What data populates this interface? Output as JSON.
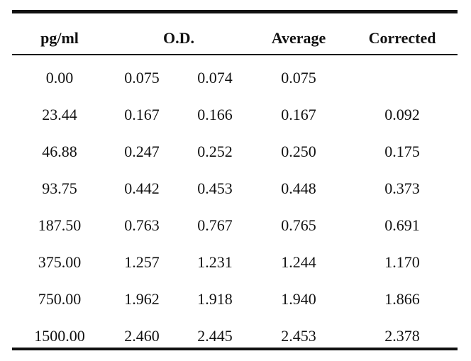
{
  "table": {
    "headers": {
      "pg_ml": "pg/ml",
      "od": "O.D.",
      "average": "Average",
      "corrected": "Corrected"
    },
    "rows": [
      {
        "pg_ml": "0.00",
        "od1": "0.075",
        "od2": "0.074",
        "average": "0.075",
        "corrected": ""
      },
      {
        "pg_ml": "23.44",
        "od1": "0.167",
        "od2": "0.166",
        "average": "0.167",
        "corrected": "0.092"
      },
      {
        "pg_ml": "46.88",
        "od1": "0.247",
        "od2": "0.252",
        "average": "0.250",
        "corrected": "0.175"
      },
      {
        "pg_ml": "93.75",
        "od1": "0.442",
        "od2": "0.453",
        "average": "0.448",
        "corrected": "0.373"
      },
      {
        "pg_ml": "187.50",
        "od1": "0.763",
        "od2": "0.767",
        "average": "0.765",
        "corrected": "0.691"
      },
      {
        "pg_ml": "375.00",
        "od1": "1.257",
        "od2": "1.231",
        "average": "1.244",
        "corrected": "1.170"
      },
      {
        "pg_ml": "750.00",
        "od1": "1.962",
        "od2": "1.918",
        "average": "1.940",
        "corrected": "1.866"
      },
      {
        "pg_ml": "1500.00",
        "od1": "2.460",
        "od2": "2.445",
        "average": "2.453",
        "corrected": "2.378"
      }
    ]
  }
}
